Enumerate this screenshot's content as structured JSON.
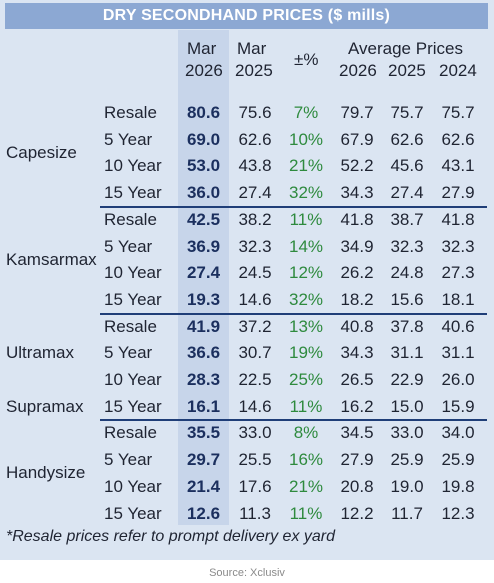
{
  "title": "DRY SECONDHAND PRICES ($ mills)",
  "header": {
    "mar": "Mar",
    "y2026": "2026",
    "y2025": "2025",
    "pct": "±%",
    "avg": "Average Prices",
    "avg_2026": "2026",
    "avg_2025": "2025",
    "avg_2024": "2024"
  },
  "groups": [
    {
      "name": "Capesize",
      "rows": [
        {
          "label": "Resale",
          "mar_2026": "80.6",
          "mar_2025": "75.6",
          "change": "7%",
          "avg_2026": "79.7",
          "avg_2025": "75.7",
          "avg_2024": "75.7"
        },
        {
          "label": "5 Year",
          "mar_2026": "69.0",
          "mar_2025": "62.6",
          "change": "10%",
          "avg_2026": "67.9",
          "avg_2025": "62.6",
          "avg_2024": "62.6"
        },
        {
          "label": "10 Year",
          "mar_2026": "53.0",
          "mar_2025": "43.8",
          "change": "21%",
          "avg_2026": "52.2",
          "avg_2025": "45.6",
          "avg_2024": "43.1"
        },
        {
          "label": "15 Year",
          "mar_2026": "36.0",
          "mar_2025": "27.4",
          "change": "32%",
          "avg_2026": "34.3",
          "avg_2025": "27.4",
          "avg_2024": "27.9"
        }
      ]
    },
    {
      "name": "Kamsarmax",
      "rows": [
        {
          "label": "Resale",
          "mar_2026": "42.5",
          "mar_2025": "38.2",
          "change": "11%",
          "avg_2026": "41.8",
          "avg_2025": "38.7",
          "avg_2024": "41.8"
        },
        {
          "label": "5 Year",
          "mar_2026": "36.9",
          "mar_2025": "32.3",
          "change": "14%",
          "avg_2026": "34.9",
          "avg_2025": "32.3",
          "avg_2024": "32.3"
        },
        {
          "label": "10 Year",
          "mar_2026": "27.4",
          "mar_2025": "24.5",
          "change": "12%",
          "avg_2026": "26.2",
          "avg_2025": "24.8",
          "avg_2024": "27.3"
        },
        {
          "label": "15 Year",
          "mar_2026": "19.3",
          "mar_2025": "14.6",
          "change": "32%",
          "avg_2026": "18.2",
          "avg_2025": "15.6",
          "avg_2024": "18.1"
        }
      ]
    },
    {
      "name": "Ultramax",
      "name2": "Supramax",
      "rows": [
        {
          "label": "Resale",
          "mar_2026": "41.9",
          "mar_2025": "37.2",
          "change": "13%",
          "avg_2026": "40.8",
          "avg_2025": "37.8",
          "avg_2024": "40.6"
        },
        {
          "label": "5 Year",
          "mar_2026": "36.6",
          "mar_2025": "30.7",
          "change": "19%",
          "avg_2026": "34.3",
          "avg_2025": "31.1",
          "avg_2024": "31.1"
        },
        {
          "label": "10 Year",
          "mar_2026": "28.3",
          "mar_2025": "22.5",
          "change": "25%",
          "avg_2026": "26.5",
          "avg_2025": "22.9",
          "avg_2024": "26.0"
        },
        {
          "label": "15 Year",
          "mar_2026": "16.1",
          "mar_2025": "14.6",
          "change": "11%",
          "avg_2026": "16.2",
          "avg_2025": "15.0",
          "avg_2024": "15.9"
        }
      ]
    },
    {
      "name": "Handysize",
      "rows": [
        {
          "label": "Resale",
          "mar_2026": "35.5",
          "mar_2025": "33.0",
          "change": "8%",
          "avg_2026": "34.5",
          "avg_2025": "33.0",
          "avg_2024": "34.0"
        },
        {
          "label": "5 Year",
          "mar_2026": "29.7",
          "mar_2025": "25.5",
          "change": "16%",
          "avg_2026": "27.9",
          "avg_2025": "25.9",
          "avg_2024": "25.9"
        },
        {
          "label": "10 Year",
          "mar_2026": "21.4",
          "mar_2025": "17.6",
          "change": "21%",
          "avg_2026": "20.8",
          "avg_2025": "19.0",
          "avg_2024": "19.8"
        },
        {
          "label": "15 Year",
          "mar_2026": "12.6",
          "mar_2025": "11.3",
          "change": "11%",
          "avg_2026": "12.2",
          "avg_2025": "11.7",
          "avg_2024": "12.3"
        }
      ]
    }
  ],
  "footnote": "*Resale prices refer to prompt delivery ex yard",
  "source": "Source: Xclusiv",
  "colors": {
    "background": "#dbe5f2",
    "title_bar": "#8ca8d3",
    "highlight_column": "#c7d5ea",
    "positive_change": "#2e8a3e",
    "separator": "#1f3e78"
  }
}
